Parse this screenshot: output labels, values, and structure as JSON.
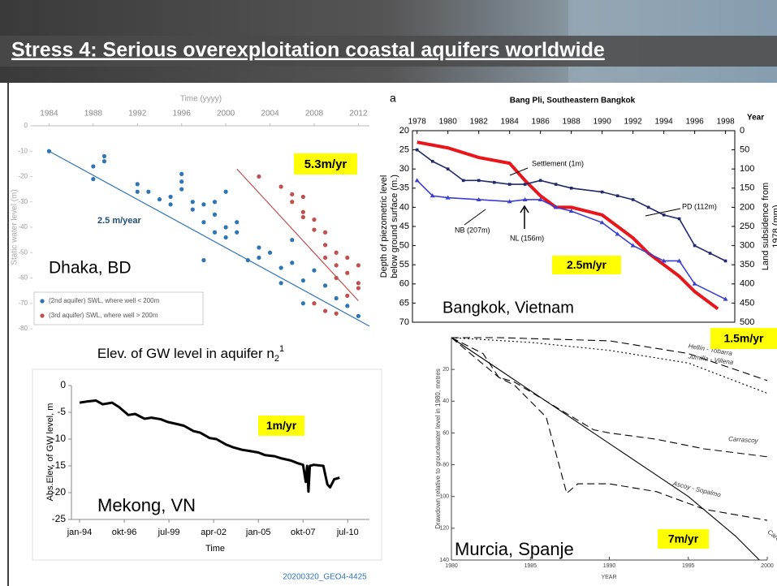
{
  "title": "Stress 4: Serious overexploitation coastal aquifers worldwide",
  "footer": "20200320_GEO4-4425",
  "chart_data": [
    {
      "type": "scatter",
      "xlabel": "Time (yyyy)",
      "ylabel": "Static water level (m)",
      "xlim": [
        1982.5,
        2013
      ],
      "xticks": [
        1984,
        1988,
        1992,
        1996,
        2000,
        2004,
        2008,
        2012
      ],
      "ylim": [
        -80,
        0
      ],
      "yticks": [
        -80,
        -70,
        -60,
        -50,
        -40,
        -30,
        -20,
        -10,
        0
      ],
      "series": [
        {
          "name": "(2nd aquifer) SWL, where well < 200m",
          "color": "#2e75b6",
          "x": [
            1984,
            1988,
            1988,
            1989,
            1989,
            1992,
            1992,
            1993,
            1994,
            1995,
            1995,
            1996,
            1996,
            1996,
            1997,
            1997,
            1998,
            1998,
            1999,
            1999,
            1999,
            2000,
            2000,
            2000,
            2001,
            2001,
            2002,
            2003,
            2003,
            2004,
            2005,
            2005,
            2006,
            2006,
            2007,
            2007,
            2008,
            2009,
            2010,
            2011,
            2012,
            1998
          ],
          "values": [
            -10,
            -16,
            -21,
            -14,
            -12,
            -23,
            -26,
            -26,
            -29,
            -31,
            -28,
            -25,
            -22,
            -19,
            -30,
            -33,
            -31,
            -38,
            -35,
            -30,
            -42,
            -40,
            -26,
            -44,
            -38,
            -42,
            -53,
            -48,
            -52,
            -50,
            -56,
            -62,
            -45,
            -54,
            -61,
            -70,
            -57,
            -63,
            -68,
            -71,
            -75,
            -53
          ],
          "trend_x": [
            1984,
            2013
          ],
          "trend_values": [
            -10,
            -79
          ]
        },
        {
          "name": "(3rd aquifer) SWL, where well > 200m",
          "color": "#c0504d",
          "x": [
            2003,
            2005,
            2006,
            2006,
            2007,
            2007,
            2007,
            2008,
            2008,
            2009,
            2009,
            2009,
            2010,
            2010,
            2010,
            2011,
            2011,
            2011,
            2012,
            2012,
            2009,
            2008,
            2010,
            2012
          ],
          "values": [
            -20,
            -24,
            -27,
            -30,
            -28,
            -34,
            -36,
            -37,
            -41,
            -42,
            -47,
            -52,
            -50,
            -55,
            -60,
            -52,
            -58,
            -67,
            -55,
            -62,
            -73,
            -70,
            -74,
            -64
          ],
          "trend_x": [
            2001,
            2012
          ],
          "trend_values": [
            -17,
            -69
          ]
        }
      ],
      "annotations": [
        "2.5 m/year",
        "5.3m/yr",
        "Dhaka, BD"
      ]
    },
    {
      "type": "line",
      "label": "a",
      "title": "Bang Pli, Southeastern Bangkok",
      "xlabel": "Year",
      "ylabel": [
        "Depth of piezometric level",
        "below ground surface (m.)"
      ],
      "y2label": [
        "Land subsidence from",
        "1978 (mm)"
      ],
      "xlim": [
        1977.7,
        1998.6
      ],
      "xticks": [
        1978,
        1980,
        1982,
        1984,
        1986,
        1988,
        1990,
        1992,
        1994,
        1996,
        1998
      ],
      "ylim": [
        20,
        70
      ],
      "y_inverted": true,
      "yticks": [
        20,
        25,
        30,
        35,
        40,
        45,
        50,
        55,
        60,
        65,
        70
      ],
      "y2lim": [
        0,
        500
      ],
      "y2ticks": [
        0,
        50,
        100,
        150,
        200,
        250,
        300,
        350,
        400,
        450,
        500
      ],
      "series": [
        {
          "name": "Settlement (1m)",
          "color": "#e8161b",
          "axis": "y2",
          "x": [
            1978,
            1980,
            1982,
            1984,
            1985,
            1986,
            1987,
            1988,
            1990,
            1991,
            1992,
            1993,
            1994,
            1995,
            1996,
            1997.5
          ],
          "values": [
            30,
            45,
            70,
            85,
            130,
            170,
            200,
            200,
            220,
            250,
            280,
            320,
            350,
            380,
            420,
            465
          ]
        },
        {
          "name": "PD (112m)",
          "color": "#1f2a6b",
          "x": [
            1978,
            1979,
            1980,
            1981,
            1982,
            1983,
            1984,
            1985,
            1986,
            1987,
            1988,
            1990,
            1991,
            1992,
            1993,
            1994,
            1995,
            1996,
            1997,
            1998
          ],
          "values": [
            25,
            28,
            30,
            33,
            33,
            33.5,
            34,
            34,
            33,
            34,
            35,
            36,
            37,
            38,
            40,
            42,
            43,
            50,
            52,
            54
          ]
        },
        {
          "name": "NB (207m)",
          "color": "#3a3fd0",
          "x": [
            1978,
            1979,
            1980,
            1982,
            1984,
            1985,
            1986,
            1987,
            1988,
            1990,
            1991,
            1992,
            1994,
            1995,
            1996,
            1998
          ],
          "values": [
            33,
            37,
            37.5,
            38,
            38.5,
            38,
            38,
            40,
            41,
            44,
            47,
            50,
            54,
            54,
            60,
            64
          ]
        }
      ],
      "annotations": [
        "NL (156m)",
        "2.5m/yr",
        "Bangkok, Vietnam"
      ]
    },
    {
      "type": "line",
      "title": "Elev. of GW level in aquifer n",
      "title_sub": "2",
      "title_sup": "1",
      "xlabel": "Time",
      "ylabel": "Abs.Elev. of GW level, m",
      "xlim": [
        "1993-07",
        "2011-11"
      ],
      "xticks": [
        {
          "value": "1994-01",
          "label": "jan-94"
        },
        {
          "value": "1996-10",
          "label": "okt-96"
        },
        {
          "value": "1999-07",
          "label": "jul-99"
        },
        {
          "value": "2002-04",
          "label": "apr-02"
        },
        {
          "value": "2005-01",
          "label": "jan-05"
        },
        {
          "value": "2007-10",
          "label": "okt-07"
        },
        {
          "value": "2010-07",
          "label": "jul-10"
        }
      ],
      "ylim": [
        -25,
        0
      ],
      "yticks": [
        -25,
        -20,
        -15,
        -10,
        -5,
        0
      ],
      "series": [
        {
          "color": "#000000",
          "x": [
            "1994-01",
            "1994-06",
            "1995-01",
            "1995-06",
            "1996-01",
            "1996-06",
            "1997-01",
            "1997-06",
            "1998-01",
            "1998-06",
            "1999-01",
            "1999-06",
            "2000-01",
            "2000-06",
            "2001-01",
            "2001-06",
            "2002-01",
            "2002-06",
            "2003-01",
            "2003-06",
            "2004-01",
            "2004-06",
            "2005-01",
            "2005-06",
            "2006-01",
            "2006-06",
            "2007-01",
            "2007-06",
            "2007-10",
            "2007-12",
            "2008-01",
            "2008-02",
            "2008-03",
            "2008-06",
            "2009-01",
            "2009-04",
            "2009-06",
            "2009-09",
            "2010-01"
          ],
          "values": [
            -3.2,
            -3,
            -2.8,
            -3.5,
            -3.2,
            -4,
            -5.5,
            -5.3,
            -6.2,
            -6,
            -6.3,
            -6.8,
            -7.2,
            -7.5,
            -8.5,
            -8.8,
            -9.8,
            -10,
            -11,
            -11.5,
            -12,
            -12.2,
            -12.5,
            -13,
            -13.2,
            -13.6,
            -14,
            -14.5,
            -14.8,
            -18,
            -15,
            -19.8,
            -15,
            -14.8,
            -15,
            -18.5,
            -19,
            -17.5,
            -17.2
          ]
        }
      ],
      "annotations": [
        "1m/yr",
        "Mekong, VN"
      ]
    },
    {
      "type": "line",
      "xlabel": "YEAR",
      "ylabel": "Drawdown relative to groundwater level in 1980, metres",
      "xlim": [
        1980,
        2000
      ],
      "xticks": [
        1980,
        1985,
        1990,
        1995,
        2000
      ],
      "ylim": [
        0,
        140
      ],
      "y_inverted": true,
      "yticks": [
        20,
        40,
        60,
        80,
        100,
        120,
        140
      ],
      "series": [
        {
          "name": "Hellín - Tobarra",
          "color": "#000000",
          "line_style": "dashed",
          "x": [
            1980,
            1983,
            1990,
            1995,
            2000
          ],
          "values": [
            0,
            0,
            2,
            10,
            27
          ]
        },
        {
          "name": "Jumilla - Villena",
          "color": "#000000",
          "line_style": "dotted",
          "x": [
            1980,
            1985,
            1990,
            1995,
            2000
          ],
          "values": [
            0,
            3,
            8,
            16,
            35
          ]
        },
        {
          "name": "Carrascoy",
          "color": "#000000",
          "line_style": "dashed",
          "x": [
            1980,
            1982,
            1983,
            1984,
            1986,
            1989,
            1990,
            1993,
            1996,
            2000
          ],
          "values": [
            0,
            10,
            25,
            28,
            40,
            58,
            60,
            64,
            70,
            75
          ]
        },
        {
          "name": "Carche - Salinas",
          "color": "#000000",
          "line_style": "solid",
          "x": [
            1980,
            1983,
            1986,
            1989,
            1992,
            1995,
            1998,
            1999.5
          ],
          "values": [
            0,
            20,
            40,
            60,
            80,
            100,
            125,
            140
          ]
        },
        {
          "name": "Ascoy - Sopalmo",
          "color": "#000000",
          "line_style": "dashed",
          "x": [
            1980,
            1983,
            1984,
            1986,
            1987.3,
            1988,
            1990,
            1993,
            1996,
            2000
          ],
          "values": [
            0,
            25,
            30,
            50,
            98,
            92,
            92,
            97,
            108,
            115
          ]
        }
      ],
      "annotations": [
        "1.5m/yr",
        "7m/yr",
        "Murcia, Spanje"
      ]
    }
  ]
}
